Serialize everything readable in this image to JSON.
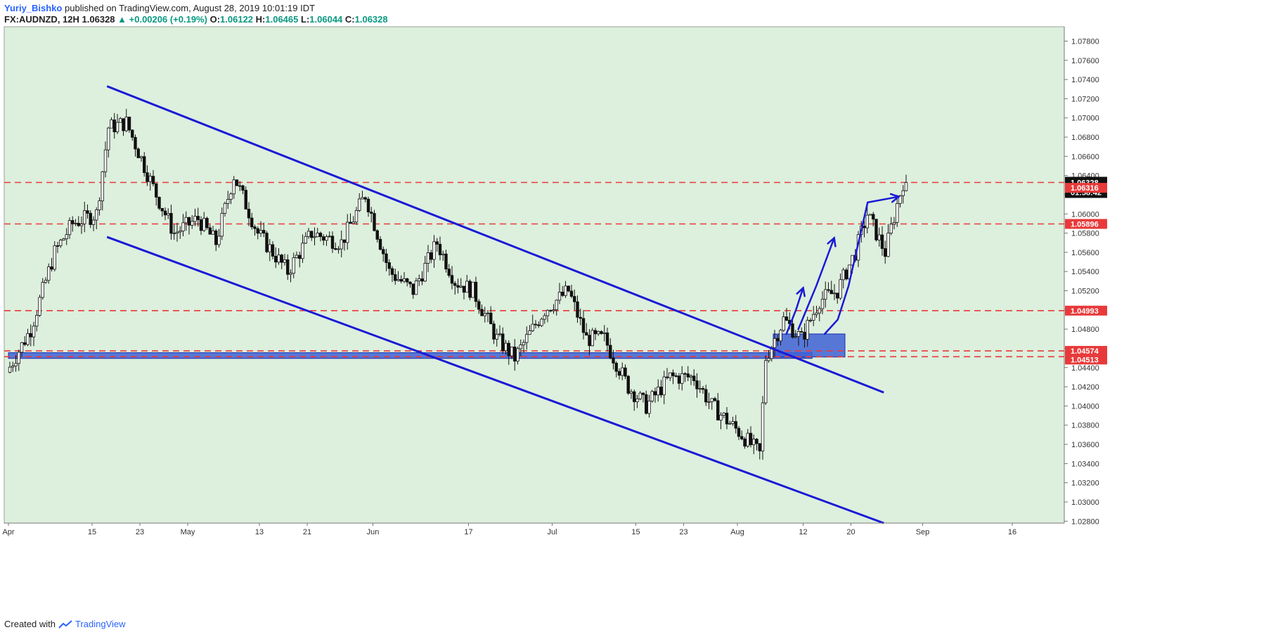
{
  "header": {
    "author": "Yuriy_Bishko",
    "published_text": "published on TradingView.com, August 28, 2019 10:01:19 IDT",
    "symbol": "FX:AUDNZD, 12H",
    "last": "1.06328",
    "change": "▲ +0.00206 (+0.19%)",
    "o_label": "O:",
    "o_val": "1.06122",
    "h_label": "H:",
    "h_val": "1.06465",
    "l_label": "L:",
    "l_val": "1.06044",
    "c_label": "C:",
    "c_val": "1.06328"
  },
  "footer": {
    "created_with": "Created with",
    "brand": "TradingView"
  },
  "colors": {
    "plot_bg": "#ddefdd",
    "channel": "#1a1ad6",
    "level": "#e83a3a",
    "zone": "#3f62d6",
    "candle": "#111111",
    "candle_up_fill": "#ffffff"
  },
  "chart_data": {
    "type": "candlestick",
    "symbol": "FX:AUDNZD",
    "interval": "12H",
    "y_ticks": [
      "1.07800",
      "1.07600",
      "1.07400",
      "1.07200",
      "1.07000",
      "1.06800",
      "1.06600",
      "1.06400",
      "1.06200",
      "1.06000",
      "1.05800",
      "1.05600",
      "1.05400",
      "1.05200",
      "1.05000",
      "1.04800",
      "1.04600",
      "1.04400",
      "1.04200",
      "1.04000",
      "1.03800",
      "1.03600",
      "1.03400",
      "1.03200",
      "1.03000",
      "1.02800"
    ],
    "ylim": [
      1.0278,
      1.0795
    ],
    "x_ticks": [
      "Apr",
      "15",
      "23",
      "May",
      "13",
      "21",
      "Jun",
      "17",
      "Jul",
      "15",
      "23",
      "Aug",
      "12",
      "20",
      "Sep",
      "16"
    ],
    "levels": [
      {
        "price": 1.06328,
        "label": "1.06328",
        "style": "dashed"
      },
      {
        "price": 1.05896,
        "label": "1.05896",
        "style": "dashed"
      },
      {
        "price": 1.04993,
        "label": "1.04993",
        "style": "dashed"
      },
      {
        "price": 1.04574,
        "label": "1.04574",
        "style": "dashed"
      },
      {
        "price": 1.04513,
        "label": "1.04513",
        "style": "dashed"
      }
    ],
    "price_badges": [
      {
        "label": "1.06328",
        "sub": "01:58:42",
        "kind": "last"
      },
      {
        "label": "1.06316",
        "kind": "red"
      },
      {
        "label": "1.05896",
        "kind": "red"
      },
      {
        "label": "1.04993",
        "kind": "red"
      },
      {
        "label": "1.04574",
        "kind": "red"
      },
      {
        "label": "1.04513",
        "kind": "red"
      }
    ],
    "anchors": [
      {
        "d": 0,
        "p": 1.0435
      },
      {
        "d": 4,
        "p": 1.048
      },
      {
        "d": 8,
        "p": 1.056
      },
      {
        "d": 11,
        "p": 1.059
      },
      {
        "d": 15,
        "p": 1.06
      },
      {
        "d": 17,
        "p": 1.069
      },
      {
        "d": 20,
        "p": 1.0695
      },
      {
        "d": 25,
        "p": 1.062
      },
      {
        "d": 28,
        "p": 1.058
      },
      {
        "d": 32,
        "p": 1.0595
      },
      {
        "d": 35,
        "p": 1.057
      },
      {
        "d": 38,
        "p": 1.064
      },
      {
        "d": 42,
        "p": 1.058
      },
      {
        "d": 47,
        "p": 1.054
      },
      {
        "d": 51,
        "p": 1.058
      },
      {
        "d": 56,
        "p": 1.057
      },
      {
        "d": 60,
        "p": 1.062
      },
      {
        "d": 64,
        "p": 1.054
      },
      {
        "d": 68,
        "p": 1.052
      },
      {
        "d": 72,
        "p": 1.057
      },
      {
        "d": 75,
        "p": 1.053
      },
      {
        "d": 78,
        "p": 1.052
      },
      {
        "d": 82,
        "p": 1.047
      },
      {
        "d": 85,
        "p": 1.045
      },
      {
        "d": 90,
        "p": 1.05
      },
      {
        "d": 94,
        "p": 1.052
      },
      {
        "d": 97,
        "p": 1.047
      },
      {
        "d": 100,
        "p": 1.047
      },
      {
        "d": 104,
        "p": 1.042
      },
      {
        "d": 107,
        "p": 1.04
      },
      {
        "d": 111,
        "p": 1.043
      },
      {
        "d": 115,
        "p": 1.043
      },
      {
        "d": 118,
        "p": 1.04
      },
      {
        "d": 123,
        "p": 1.037
      },
      {
        "d": 126,
        "p": 1.035
      },
      {
        "d": 127,
        "p": 1.045
      },
      {
        "d": 130,
        "p": 1.049
      },
      {
        "d": 133,
        "p": 1.047
      },
      {
        "d": 136,
        "p": 1.051
      },
      {
        "d": 139,
        "p": 1.052
      },
      {
        "d": 142,
        "p": 1.056
      },
      {
        "d": 144,
        "p": 1.06
      },
      {
        "d": 147,
        "p": 1.056
      },
      {
        "d": 149,
        "p": 1.061
      },
      {
        "d": 150,
        "p": 1.0633
      }
    ],
    "channel": {
      "upper": [
        {
          "d": 16.5,
          "p": 1.0733
        },
        {
          "d": 146.5,
          "p": 1.0414
        }
      ],
      "lower": [
        {
          "d": 16.5,
          "p": 1.0576
        },
        {
          "d": 146.5,
          "p": 1.0278
        }
      ]
    },
    "zones": [
      {
        "d1": 0,
        "d2": 134.5,
        "p1": 1.04555,
        "p2": 1.04495
      },
      {
        "d1": 128,
        "d2": 140,
        "p1": 1.0475,
        "p2": 1.0451
      }
    ],
    "arrows": [
      [
        {
          "d": 130.2,
          "p": 1.0475
        },
        {
          "d": 131.8,
          "p": 1.05
        },
        {
          "d": 133.0,
          "p": 1.0523
        }
      ],
      [
        {
          "d": 132.2,
          "p": 1.048
        },
        {
          "d": 135.2,
          "p": 1.0525
        },
        {
          "d": 138.2,
          "p": 1.0575
        }
      ],
      [
        {
          "d": 136.6,
          "p": 1.0475
        },
        {
          "d": 138.8,
          "p": 1.049
        },
        {
          "d": 140.6,
          "p": 1.0525
        },
        {
          "d": 143.8,
          "p": 1.0612
        },
        {
          "d": 149.0,
          "p": 1.0618
        }
      ]
    ]
  }
}
